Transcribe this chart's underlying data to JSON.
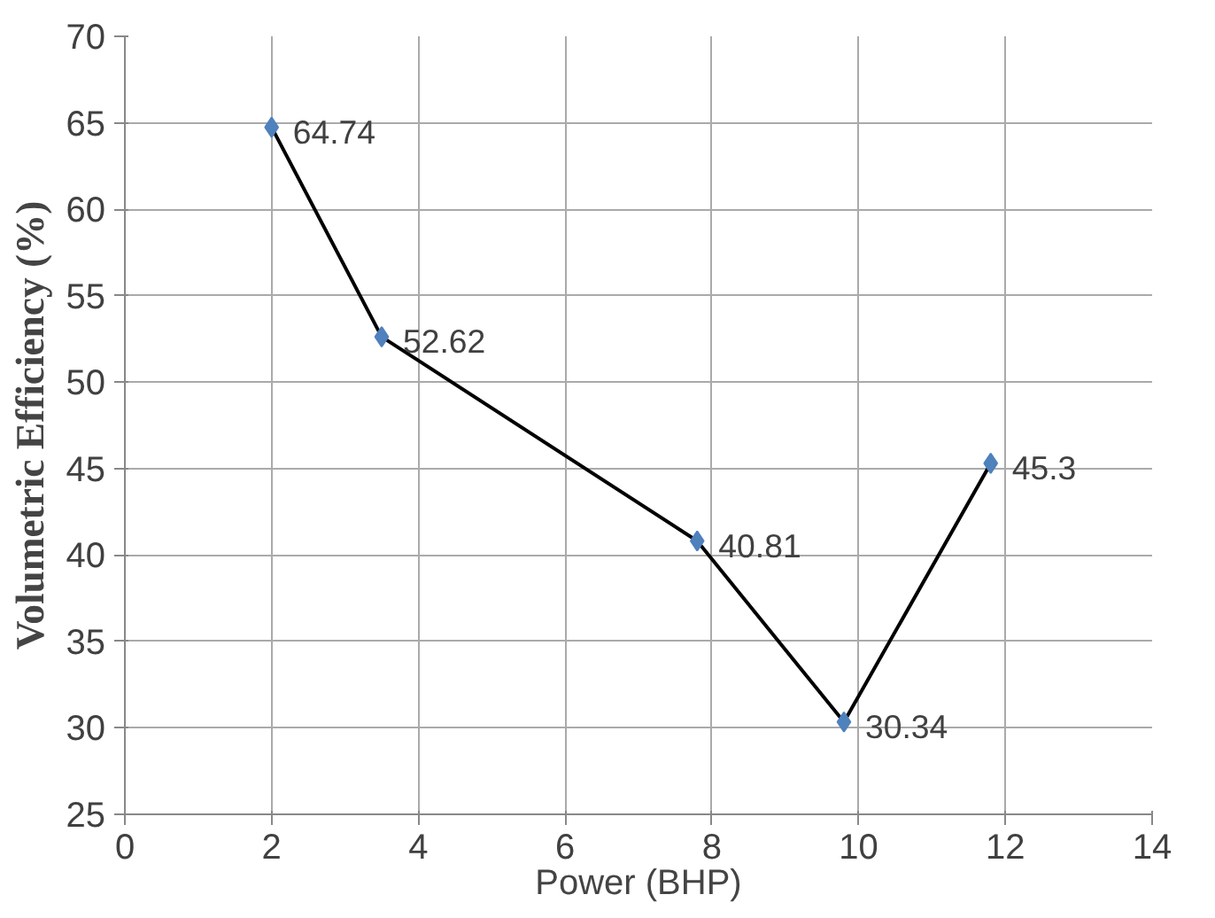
{
  "chart_data": {
    "type": "line",
    "xlabel": "Power (BHP)",
    "ylabel": "Volumetric Efficiency (%)",
    "x": [
      2,
      3.5,
      7.8,
      9.8,
      11.8
    ],
    "series": [
      {
        "color": "#000000",
        "colors": [
          "#4f81bd",
          "#4f81bd",
          "#4f81bd",
          "#4f81bd",
          "#4f81bd"
        ],
        "values": [
          64.74,
          52.62,
          40.81,
          30.34,
          45.3
        ]
      }
    ],
    "xlim": [
      0,
      14
    ],
    "xticks": [
      0,
      2,
      4,
      6,
      8,
      10,
      12,
      14
    ],
    "ylim": [
      25,
      70
    ],
    "yticks": [
      25,
      30,
      35,
      40,
      45,
      50,
      55,
      60,
      65,
      70
    ],
    "grid": true,
    "marker": "diamond",
    "line_style": "solid",
    "data_labels": true
  }
}
